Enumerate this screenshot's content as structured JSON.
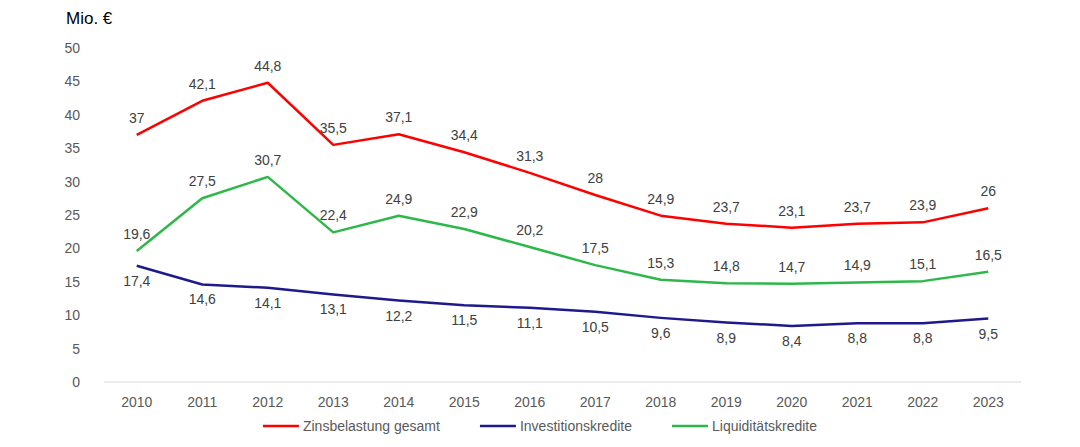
{
  "chart_data": {
    "type": "line",
    "y_label": "Mio. €",
    "categories": [
      "2010",
      "2011",
      "2012",
      "2013",
      "2014",
      "2015",
      "2016",
      "2017",
      "2018",
      "2019",
      "2020",
      "2021",
      "2022",
      "2023"
    ],
    "series": [
      {
        "name": "Zinsbelastung gesamt",
        "color": "#ff0000",
        "values": [
          37,
          42.1,
          44.8,
          35.5,
          37.1,
          34.4,
          31.3,
          28,
          24.9,
          23.7,
          23.1,
          23.7,
          23.9,
          26
        ],
        "value_labels": [
          "37",
          "42,1",
          "44,8",
          "35,5",
          "37,1",
          "34,4",
          "31,3",
          "28",
          "24,9",
          "23,7",
          "23,1",
          "23,7",
          "23,9",
          "26"
        ]
      },
      {
        "name": "Investitionskredite",
        "color": "#1f1a8c",
        "values": [
          17.4,
          14.6,
          14.1,
          13.1,
          12.2,
          11.5,
          11.1,
          10.5,
          9.6,
          8.9,
          8.4,
          8.8,
          8.8,
          9.5
        ],
        "value_labels": [
          "17,4",
          "14,6",
          "14,1",
          "13,1",
          "12,2",
          "11,5",
          "11,1",
          "10,5",
          "9,6",
          "8,9",
          "8,4",
          "8,8",
          "8,8",
          "9,5"
        ]
      },
      {
        "name": "Liquiditätskredite",
        "color": "#2eb84a",
        "values": [
          19.6,
          27.5,
          30.7,
          22.4,
          24.9,
          22.9,
          20.2,
          17.5,
          15.3,
          14.8,
          14.7,
          14.9,
          15.1,
          16.5
        ],
        "value_labels": [
          "19,6",
          "27,5",
          "30,7",
          "22,4",
          "24,9",
          "22,9",
          "20,2",
          "17,5",
          "15,3",
          "14,8",
          "14,7",
          "14,9",
          "15,1",
          "16,5"
        ]
      }
    ],
    "ylim": [
      0,
      50
    ],
    "yticks": [
      0,
      5,
      10,
      15,
      20,
      25,
      30,
      35,
      40,
      45,
      50
    ],
    "grid": false,
    "legend": "bottom",
    "data_labels": true
  }
}
